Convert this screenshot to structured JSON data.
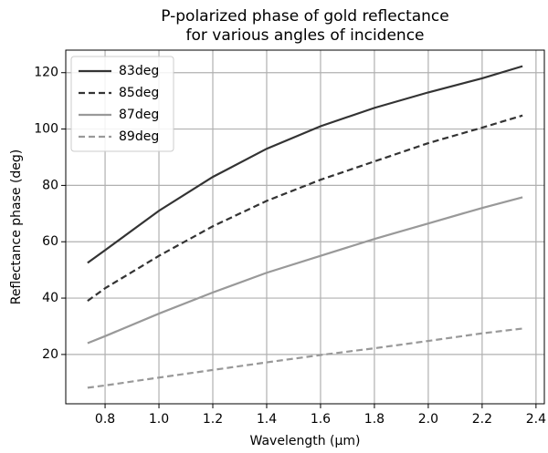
{
  "chart_data": {
    "type": "line",
    "title": [
      "P-polarized phase of gold reflectance",
      "for various angles of incidence"
    ],
    "xlabel": "Wavelength (µm)",
    "ylabel": "Reflectance phase (deg)",
    "x": [
      0.735,
      0.8,
      1.0,
      1.2,
      1.4,
      1.6,
      1.8,
      2.0,
      2.2,
      2.35
    ],
    "series": [
      {
        "name": "83deg",
        "color": "#333333",
        "dash": "solid",
        "values": [
          52.5,
          57,
          71,
          83,
          93,
          101,
          107.5,
          113,
          118,
          122.3
        ]
      },
      {
        "name": "85deg",
        "color": "#333333",
        "dash": "dashed",
        "values": [
          39,
          43.5,
          55,
          65.5,
          74.5,
          82,
          88.5,
          95,
          100.5,
          104.8
        ]
      },
      {
        "name": "87deg",
        "color": "#999999",
        "dash": "solid",
        "values": [
          24,
          26.5,
          34.5,
          42,
          49,
          55,
          61,
          66.5,
          72,
          75.8
        ]
      },
      {
        "name": "89deg",
        "color": "#999999",
        "dash": "dashed",
        "values": [
          8.2,
          9,
          11.8,
          14.5,
          17.2,
          19.8,
          22.2,
          24.8,
          27.5,
          29.2
        ]
      }
    ],
    "xlim": [
      0.654,
      2.431
    ],
    "xticks": [
      0.8,
      {
        "value": 1,
        "label": "1.0"
      },
      1.2,
      1.4,
      1.6,
      1.8,
      {
        "value": 2,
        "label": "2.0"
      },
      2.2,
      2.4
    ],
    "ylim": [
      2.5,
      128
    ],
    "yticks": [
      20,
      40,
      60,
      80,
      100,
      120
    ],
    "grid": true,
    "legend": "upper-left"
  }
}
